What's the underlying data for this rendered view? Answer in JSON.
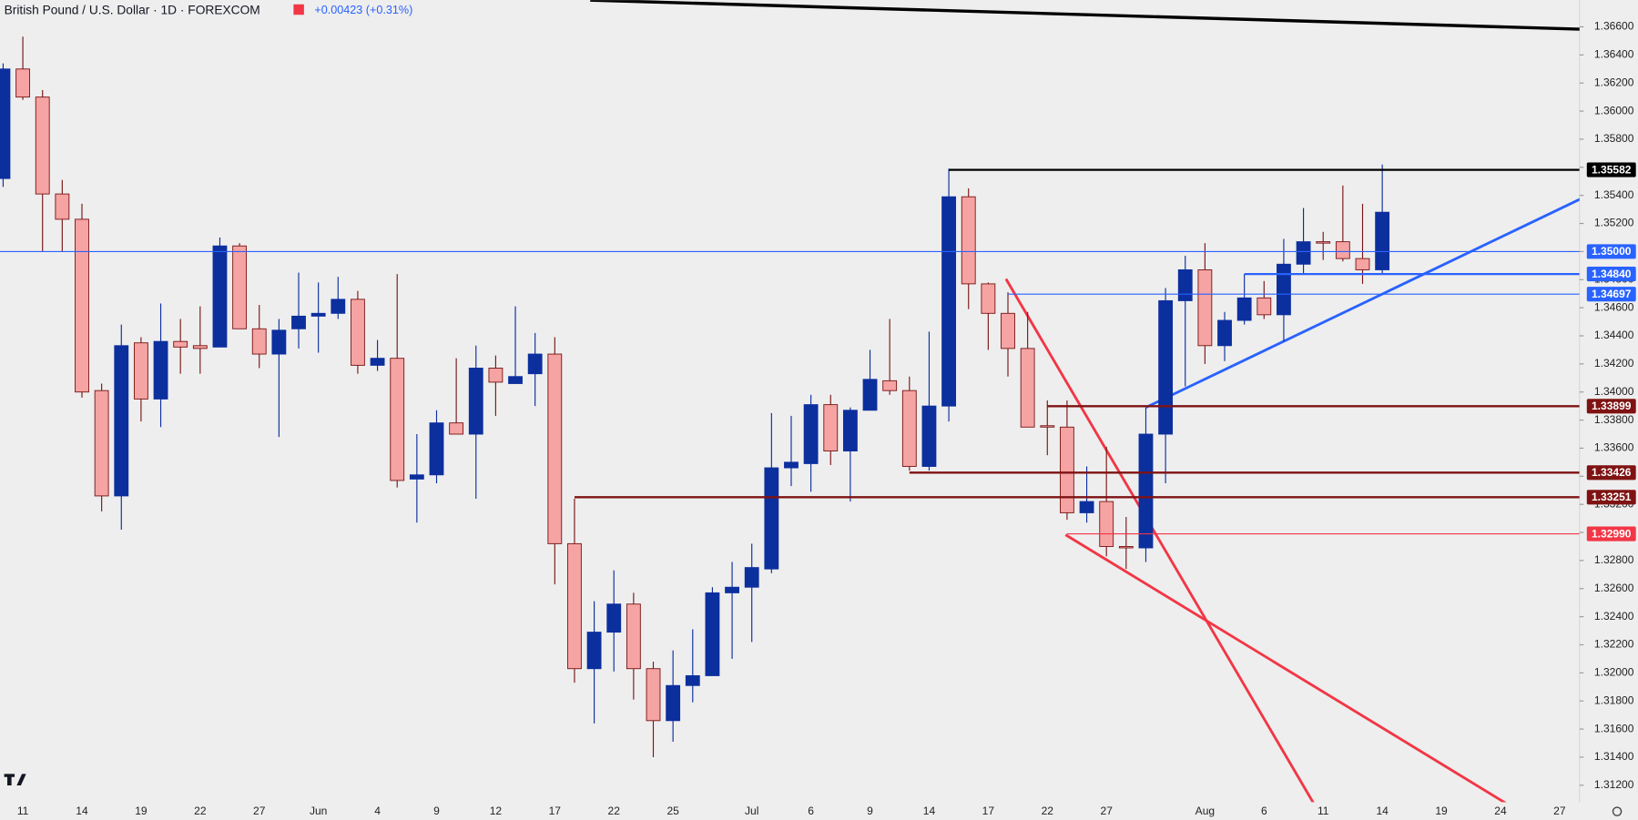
{
  "chart_data": {
    "type": "candlestick",
    "title": "British Pound / U.S. Dollar · 1D · FOREXCOM",
    "change": "+0.00423 (+0.31%)",
    "categories": [
      null,
      "11",
      null,
      null,
      "14",
      null,
      null,
      "19",
      null,
      null,
      "22",
      null,
      null,
      "27",
      null,
      null,
      "Jun",
      null,
      null,
      "4",
      null,
      null,
      "9",
      null,
      null,
      "12",
      null,
      null,
      "17",
      null,
      null,
      "22",
      null,
      null,
      "25",
      null,
      null,
      null,
      "Jul",
      null,
      null,
      "6",
      null,
      null,
      "9",
      null,
      null,
      "14",
      null,
      null,
      "17",
      null,
      null,
      "22",
      null,
      null,
      "27",
      null,
      null,
      null,
      null,
      "Aug",
      null,
      null,
      "6",
      null,
      null,
      "11",
      null,
      null,
      "14",
      null,
      null,
      "19",
      null,
      null,
      "24",
      null,
      null,
      "27"
    ],
    "open": [
      1.3552,
      1.363,
      1.361,
      1.3541,
      1.3523,
      1.3401,
      1.3326,
      1.3435,
      1.3395,
      1.3436,
      1.3433,
      1.3432,
      1.3504,
      1.3445,
      1.3427,
      1.3445,
      1.3454,
      1.3456,
      1.3466,
      1.3419,
      1.3424,
      1.3338,
      1.3341,
      1.3378,
      1.337,
      1.3417,
      1.3406,
      1.3413,
      1.3427,
      1.3292,
      1.3203,
      1.3229,
      1.3249,
      1.3203,
      1.3166,
      1.3191,
      1.3198,
      1.3257,
      1.3261,
      1.3274,
      1.3346,
      1.3349,
      1.3391,
      1.3358,
      1.3387,
      1.3408,
      1.3401,
      1.3347,
      1.339,
      1.3539,
      1.3477,
      1.3456,
      1.3431,
      1.3376,
      1.3375,
      1.3314,
      1.3322,
      1.329,
      1.3289,
      1.337,
      1.3465,
      1.3487,
      1.3433,
      1.3451,
      1.3467,
      1.3455,
      1.3491,
      1.3507,
      1.3507,
      1.3495,
      1.3487,
      null,
      null,
      null,
      null,
      null,
      null,
      null,
      null,
      null
    ],
    "high": [
      1.3634,
      1.3653,
      1.3615,
      1.3551,
      1.3534,
      1.3406,
      1.3448,
      1.3439,
      1.3463,
      1.3452,
      1.3461,
      1.351,
      1.3506,
      1.3462,
      1.3452,
      1.3485,
      1.3478,
      1.3482,
      1.3472,
      1.3437,
      1.3484,
      1.337,
      1.3387,
      1.3424,
      1.3433,
      1.3426,
      1.3461,
      1.3442,
      1.3439,
      1.3324,
      1.3251,
      1.3273,
      1.3257,
      1.3208,
      1.3216,
      1.3231,
      1.3261,
      1.3279,
      1.3292,
      1.3385,
      1.3383,
      1.3398,
      1.3398,
      1.3389,
      1.343,
      1.3452,
      1.3411,
      1.3443,
      1.3559,
      1.3545,
      1.3478,
      1.3471,
      1.3457,
      1.3394,
      1.3394,
      1.3347,
      1.3361,
      1.3311,
      1.3389,
      1.3474,
      1.3497,
      1.3506,
      1.3457,
      1.3484,
      1.3479,
      1.3509,
      1.3531,
      1.3514,
      1.3547,
      1.3534,
      1.3562,
      null,
      null,
      null,
      null,
      null,
      null,
      null,
      null,
      null
    ],
    "low": [
      1.3546,
      1.3608,
      1.35,
      1.35,
      1.3396,
      1.3315,
      1.3302,
      1.3379,
      1.3375,
      1.3413,
      1.3413,
      1.3432,
      1.3445,
      1.3417,
      1.3368,
      1.3431,
      1.3428,
      1.3452,
      1.3413,
      1.3415,
      1.3332,
      1.3307,
      1.3335,
      1.337,
      1.3324,
      1.3383,
      1.3406,
      1.339,
      1.3263,
      1.3193,
      1.3164,
      1.3201,
      1.3181,
      1.314,
      1.3151,
      1.3179,
      1.3198,
      1.321,
      1.3222,
      1.3271,
      1.3333,
      1.3329,
      1.3348,
      1.3322,
      1.3387,
      1.3398,
      1.3344,
      1.3344,
      1.3379,
      1.3459,
      1.343,
      1.3411,
      1.3375,
      1.3355,
      1.3309,
      1.3307,
      1.3283,
      1.3274,
      1.3279,
      1.3335,
      1.3404,
      1.342,
      1.3422,
      1.3448,
      1.3452,
      1.3436,
      1.3484,
      1.3494,
      1.3493,
      1.3477,
      1.3484,
      null,
      null,
      null,
      null,
      null,
      null,
      null,
      null,
      null
    ],
    "close": [
      1.363,
      1.361,
      1.3541,
      1.3523,
      1.34,
      1.3326,
      1.3433,
      1.3395,
      1.3436,
      1.3432,
      1.3431,
      1.3504,
      1.3445,
      1.3427,
      1.3444,
      1.3454,
      1.3456,
      1.3466,
      1.3419,
      1.3424,
      1.3337,
      1.3341,
      1.3378,
      1.337,
      1.3417,
      1.3407,
      1.3411,
      1.3427,
      1.3292,
      1.3203,
      1.3229,
      1.3249,
      1.3203,
      1.3166,
      1.3191,
      1.3198,
      1.3257,
      1.3261,
      1.3275,
      1.3346,
      1.335,
      1.3391,
      1.3358,
      1.3387,
      1.3409,
      1.3401,
      1.3347,
      1.339,
      1.3539,
      1.3477,
      1.3456,
      1.3431,
      1.3375,
      1.3375,
      1.3314,
      1.3322,
      1.329,
      1.3289,
      1.337,
      1.3465,
      1.3487,
      1.3433,
      1.3451,
      1.3467,
      1.3455,
      1.3491,
      1.3507,
      1.3506,
      1.3495,
      1.3487,
      1.3528,
      null,
      null,
      null,
      null,
      null,
      null,
      null,
      null,
      null
    ],
    "up_color": "#0c2f9e",
    "down_color": "#f5a3a3",
    "down_edge_color": "#7a1616",
    "ylim": [
      1.3108,
      1.3679
    ],
    "yticks": [
      {
        "value": 1.366,
        "label": "1.36600"
      },
      {
        "value": 1.364,
        "label": "1.36400"
      },
      {
        "value": 1.362,
        "label": "1.36200"
      },
      {
        "value": 1.36,
        "label": "1.36000"
      },
      {
        "value": 1.358,
        "label": "1.35800"
      },
      {
        "value": 1.356,
        "label": "1.35600"
      },
      {
        "value": 1.354,
        "label": "1.35400"
      },
      {
        "value": 1.352,
        "label": "1.35200"
      },
      {
        "value": 1.35,
        "label": "1.35000"
      },
      {
        "value": 1.348,
        "label": "1.34800"
      },
      {
        "value": 1.346,
        "label": "1.34600"
      },
      {
        "value": 1.344,
        "label": "1.34400"
      },
      {
        "value": 1.342,
        "label": "1.34200"
      },
      {
        "value": 1.34,
        "label": "1.34000"
      },
      {
        "value": 1.338,
        "label": "1.33800"
      },
      {
        "value": 1.336,
        "label": "1.33600"
      },
      {
        "value": 1.334,
        "label": "1.33400"
      },
      {
        "value": 1.332,
        "label": "1.33200"
      },
      {
        "value": 1.33,
        "label": "1.33000"
      },
      {
        "value": 1.328,
        "label": "1.32800"
      },
      {
        "value": 1.326,
        "label": "1.32600"
      },
      {
        "value": 1.324,
        "label": "1.32400"
      },
      {
        "value": 1.322,
        "label": "1.32200"
      },
      {
        "value": 1.32,
        "label": "1.32000"
      },
      {
        "value": 1.318,
        "label": "1.31800"
      },
      {
        "value": 1.316,
        "label": "1.31600"
      },
      {
        "value": 1.314,
        "label": "1.31400"
      },
      {
        "value": 1.312,
        "label": "1.31200"
      }
    ],
    "levels": [
      {
        "value": 1.35582,
        "color": "#000000"
      },
      {
        "value": 1.35,
        "label": "1.35000",
        "color": "#2962ff"
      },
      {
        "value": 1.3484,
        "label": "1.34840",
        "color": "#2962ff"
      },
      {
        "value": 1.34697,
        "color": "#2962ff"
      },
      {
        "value": 1.33899,
        "color": "#7f1313"
      },
      {
        "value": 1.33426,
        "color": "#7f1313"
      },
      {
        "value": 1.33251,
        "color": "#7f1313"
      },
      {
        "value": 1.3299,
        "label": "1.32990",
        "color": "#f23645"
      }
    ]
  }
}
